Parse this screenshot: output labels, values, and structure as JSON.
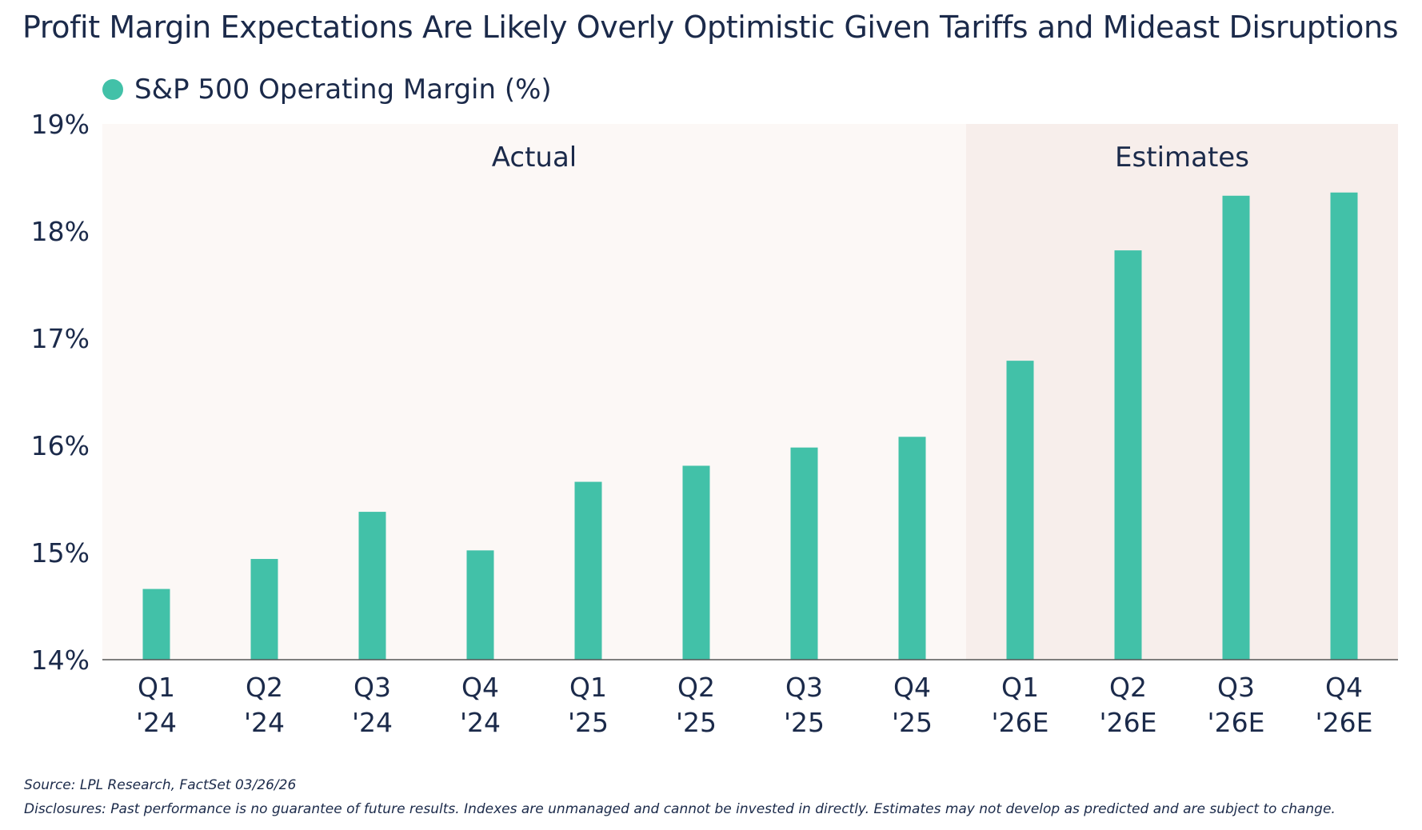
{
  "title": "Profit Margin Expectations Are Likely Overly Optimistic Given Tariffs and Mideast Disruptions",
  "legend": {
    "label": "S&P 500 Operating Margin (%)"
  },
  "source": "Source: LPL Research, FactSet 03/26/26",
  "disclosure": "Disclosures: Past performance is no guarantee of future results. Indexes are unmanaged and cannot be invested in directly. Estimates may not develop as predicted and are subject to change.",
  "colors": {
    "bar": "#42c1a8",
    "actual_bg": "#fcf8f6",
    "estimates_bg": "#f7eeeb",
    "text": "#1b2a4a"
  },
  "chart_data": {
    "type": "bar",
    "categories": [
      [
        "Q1",
        "'24"
      ],
      [
        "Q2",
        "'24"
      ],
      [
        "Q3",
        "'24"
      ],
      [
        "Q4",
        "'24"
      ],
      [
        "Q1",
        "'25"
      ],
      [
        "Q2",
        "'25"
      ],
      [
        "Q3",
        "'25"
      ],
      [
        "Q4",
        "'25"
      ],
      [
        "Q1",
        "'26E"
      ],
      [
        "Q2",
        "'26E"
      ],
      [
        "Q3",
        "'26E"
      ],
      [
        "Q4",
        "'26E"
      ]
    ],
    "series": [
      {
        "name": "S&P 500 Operating Margin (%)",
        "values": [
          14.66,
          14.94,
          15.38,
          15.02,
          15.66,
          15.81,
          15.98,
          16.08,
          16.79,
          17.82,
          18.33,
          18.36
        ]
      }
    ],
    "ylim": [
      14,
      19
    ],
    "yticks": [
      "14%",
      "15%",
      "16%",
      "17%",
      "18%",
      "19%"
    ],
    "regions": [
      {
        "label": "Actual",
        "from": 0,
        "to": 7
      },
      {
        "label": "Estimates",
        "from": 8,
        "to": 11
      }
    ],
    "legend_position": "top-left",
    "grid": false
  }
}
